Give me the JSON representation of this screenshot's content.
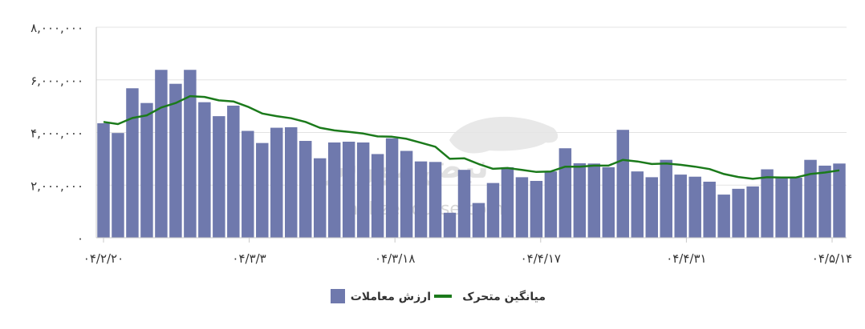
{
  "chart_data": {
    "type": "bar",
    "x_tick_labels": [
      "۰۴/۲/۲۰",
      "۰۴/۳/۳",
      "۰۴/۳/۱۸",
      "۰۴/۴/۱۷",
      "۰۴/۴/۳۱",
      "۰۴/۵/۱۴"
    ],
    "y_tick_labels": [
      "۰",
      "۲,۰۰۰,۰۰۰",
      "۴,۰۰۰,۰۰۰",
      "۶,۰۰۰,۰۰۰",
      "۸,۰۰۰,۰۰۰"
    ],
    "y_ticks": [
      0,
      2000000,
      4000000,
      6000000,
      8000000
    ],
    "ylim": [
      0,
      8000000
    ],
    "grid": true,
    "legend_position": "bottom-center",
    "series": [
      {
        "name": "ارزش معاملات",
        "type": "bar",
        "color": "#6f79ad",
        "values": [
          4350000,
          3980000,
          5680000,
          5120000,
          6380000,
          5850000,
          6380000,
          5150000,
          4620000,
          5020000,
          4060000,
          3600000,
          4180000,
          4200000,
          3680000,
          3020000,
          3620000,
          3650000,
          3620000,
          3180000,
          3780000,
          3300000,
          2900000,
          2880000,
          950000,
          2580000,
          1320000,
          2080000,
          2680000,
          2300000,
          2160000,
          2520000,
          3400000,
          2830000,
          2820000,
          2680000,
          4100000,
          2520000,
          2300000,
          2960000,
          2400000,
          2320000,
          2130000,
          1640000,
          1860000,
          1950000,
          2600000,
          2320000,
          2280000,
          2960000,
          2740000,
          2820000
        ]
      },
      {
        "name": "میانگین متحرک",
        "type": "line",
        "color": "#1b7a1b",
        "values": [
          4400000,
          4320000,
          4550000,
          4650000,
          4950000,
          5120000,
          5380000,
          5350000,
          5220000,
          5180000,
          4980000,
          4720000,
          4620000,
          4540000,
          4400000,
          4180000,
          4080000,
          4020000,
          3960000,
          3850000,
          3840000,
          3760000,
          3610000,
          3460000,
          3000000,
          3020000,
          2800000,
          2620000,
          2650000,
          2580000,
          2500000,
          2520000,
          2700000,
          2700000,
          2740000,
          2740000,
          2960000,
          2900000,
          2800000,
          2820000,
          2770000,
          2700000,
          2610000,
          2420000,
          2310000,
          2240000,
          2300000,
          2290000,
          2290000,
          2420000,
          2480000,
          2560000
        ]
      }
    ],
    "legend": [
      {
        "label": "میانگین متحرک",
        "color": "#1b7a1b",
        "shape": "line"
      },
      {
        "label": "ارزش معاملات",
        "color": "#6f79ad",
        "shape": "square"
      }
    ]
  }
}
